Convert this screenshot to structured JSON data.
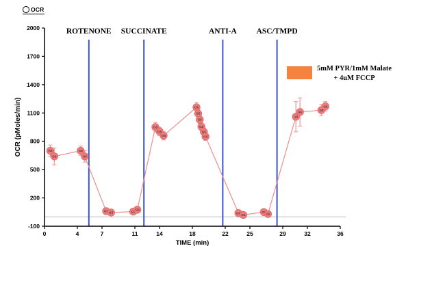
{
  "series_toggle": {
    "label": "OCR"
  },
  "legend": {
    "swatch_color": "#F5823E",
    "line1": "5mM PYR/1mM Malate",
    "line2": "+ 4uM FCCP"
  },
  "chart_data": {
    "type": "line",
    "title": "",
    "xlabel": "TIME (min)",
    "ylabel": "OCR (pMoles/min)",
    "xlim": [
      0,
      36
    ],
    "ylim": [
      -100,
      2000
    ],
    "xticks": [
      0,
      4,
      7,
      11,
      14,
      18,
      22,
      25,
      29,
      32,
      36
    ],
    "yticks": [
      -100,
      200,
      500,
      800,
      1100,
      1400,
      1700,
      2000
    ],
    "baseline_y": 0,
    "point_label": "G5",
    "legend_position": "top-right",
    "grid": "baseline-only",
    "colors": {
      "point": "#EF7C7C",
      "point_edge": "#DE6A6A",
      "line": "#F08C8C",
      "error": "#F2A2A2",
      "injection": "#3B52C8",
      "baseline": "#BBBBBB",
      "axis": "#000000"
    },
    "injections": [
      {
        "x": 5.4,
        "label": "ROTENONE"
      },
      {
        "x": 12.1,
        "label": "SUCCINATE"
      },
      {
        "x": 21.7,
        "label": "ANTI-A"
      },
      {
        "x": 28.3,
        "label": "ASC/TMPD"
      }
    ],
    "points": [
      {
        "x": 0.7,
        "y": 700,
        "err": 60
      },
      {
        "x": 1.2,
        "y": 640,
        "err": 90
      },
      {
        "x": 4.4,
        "y": 700,
        "err": 50
      },
      {
        "x": 4.9,
        "y": 640,
        "err": 60
      },
      {
        "x": 7.5,
        "y": 60,
        "err": 30
      },
      {
        "x": 8.1,
        "y": 45,
        "err": 30
      },
      {
        "x": 10.8,
        "y": 55,
        "err": 30
      },
      {
        "x": 11.3,
        "y": 75,
        "err": 30
      },
      {
        "x": 13.5,
        "y": 950,
        "err": 50
      },
      {
        "x": 14.0,
        "y": 905,
        "err": 45
      },
      {
        "x": 14.5,
        "y": 860,
        "err": 45
      },
      {
        "x": 18.5,
        "y": 1160,
        "err": 50
      },
      {
        "x": 18.7,
        "y": 1095,
        "err": 45
      },
      {
        "x": 18.9,
        "y": 1030,
        "err": 40
      },
      {
        "x": 19.1,
        "y": 955,
        "err": 40
      },
      {
        "x": 19.4,
        "y": 900,
        "err": 40
      },
      {
        "x": 19.6,
        "y": 850,
        "err": 40
      },
      {
        "x": 23.6,
        "y": 40,
        "err": 30
      },
      {
        "x": 24.2,
        "y": 20,
        "err": 30
      },
      {
        "x": 26.7,
        "y": 50,
        "err": 30
      },
      {
        "x": 27.2,
        "y": 30,
        "err": 30
      },
      {
        "x": 30.6,
        "y": 1060,
        "err": 160
      },
      {
        "x": 31.1,
        "y": 1110,
        "err": 150
      },
      {
        "x": 33.7,
        "y": 1130,
        "err": 60
      },
      {
        "x": 34.2,
        "y": 1170,
        "err": 50
      }
    ]
  }
}
